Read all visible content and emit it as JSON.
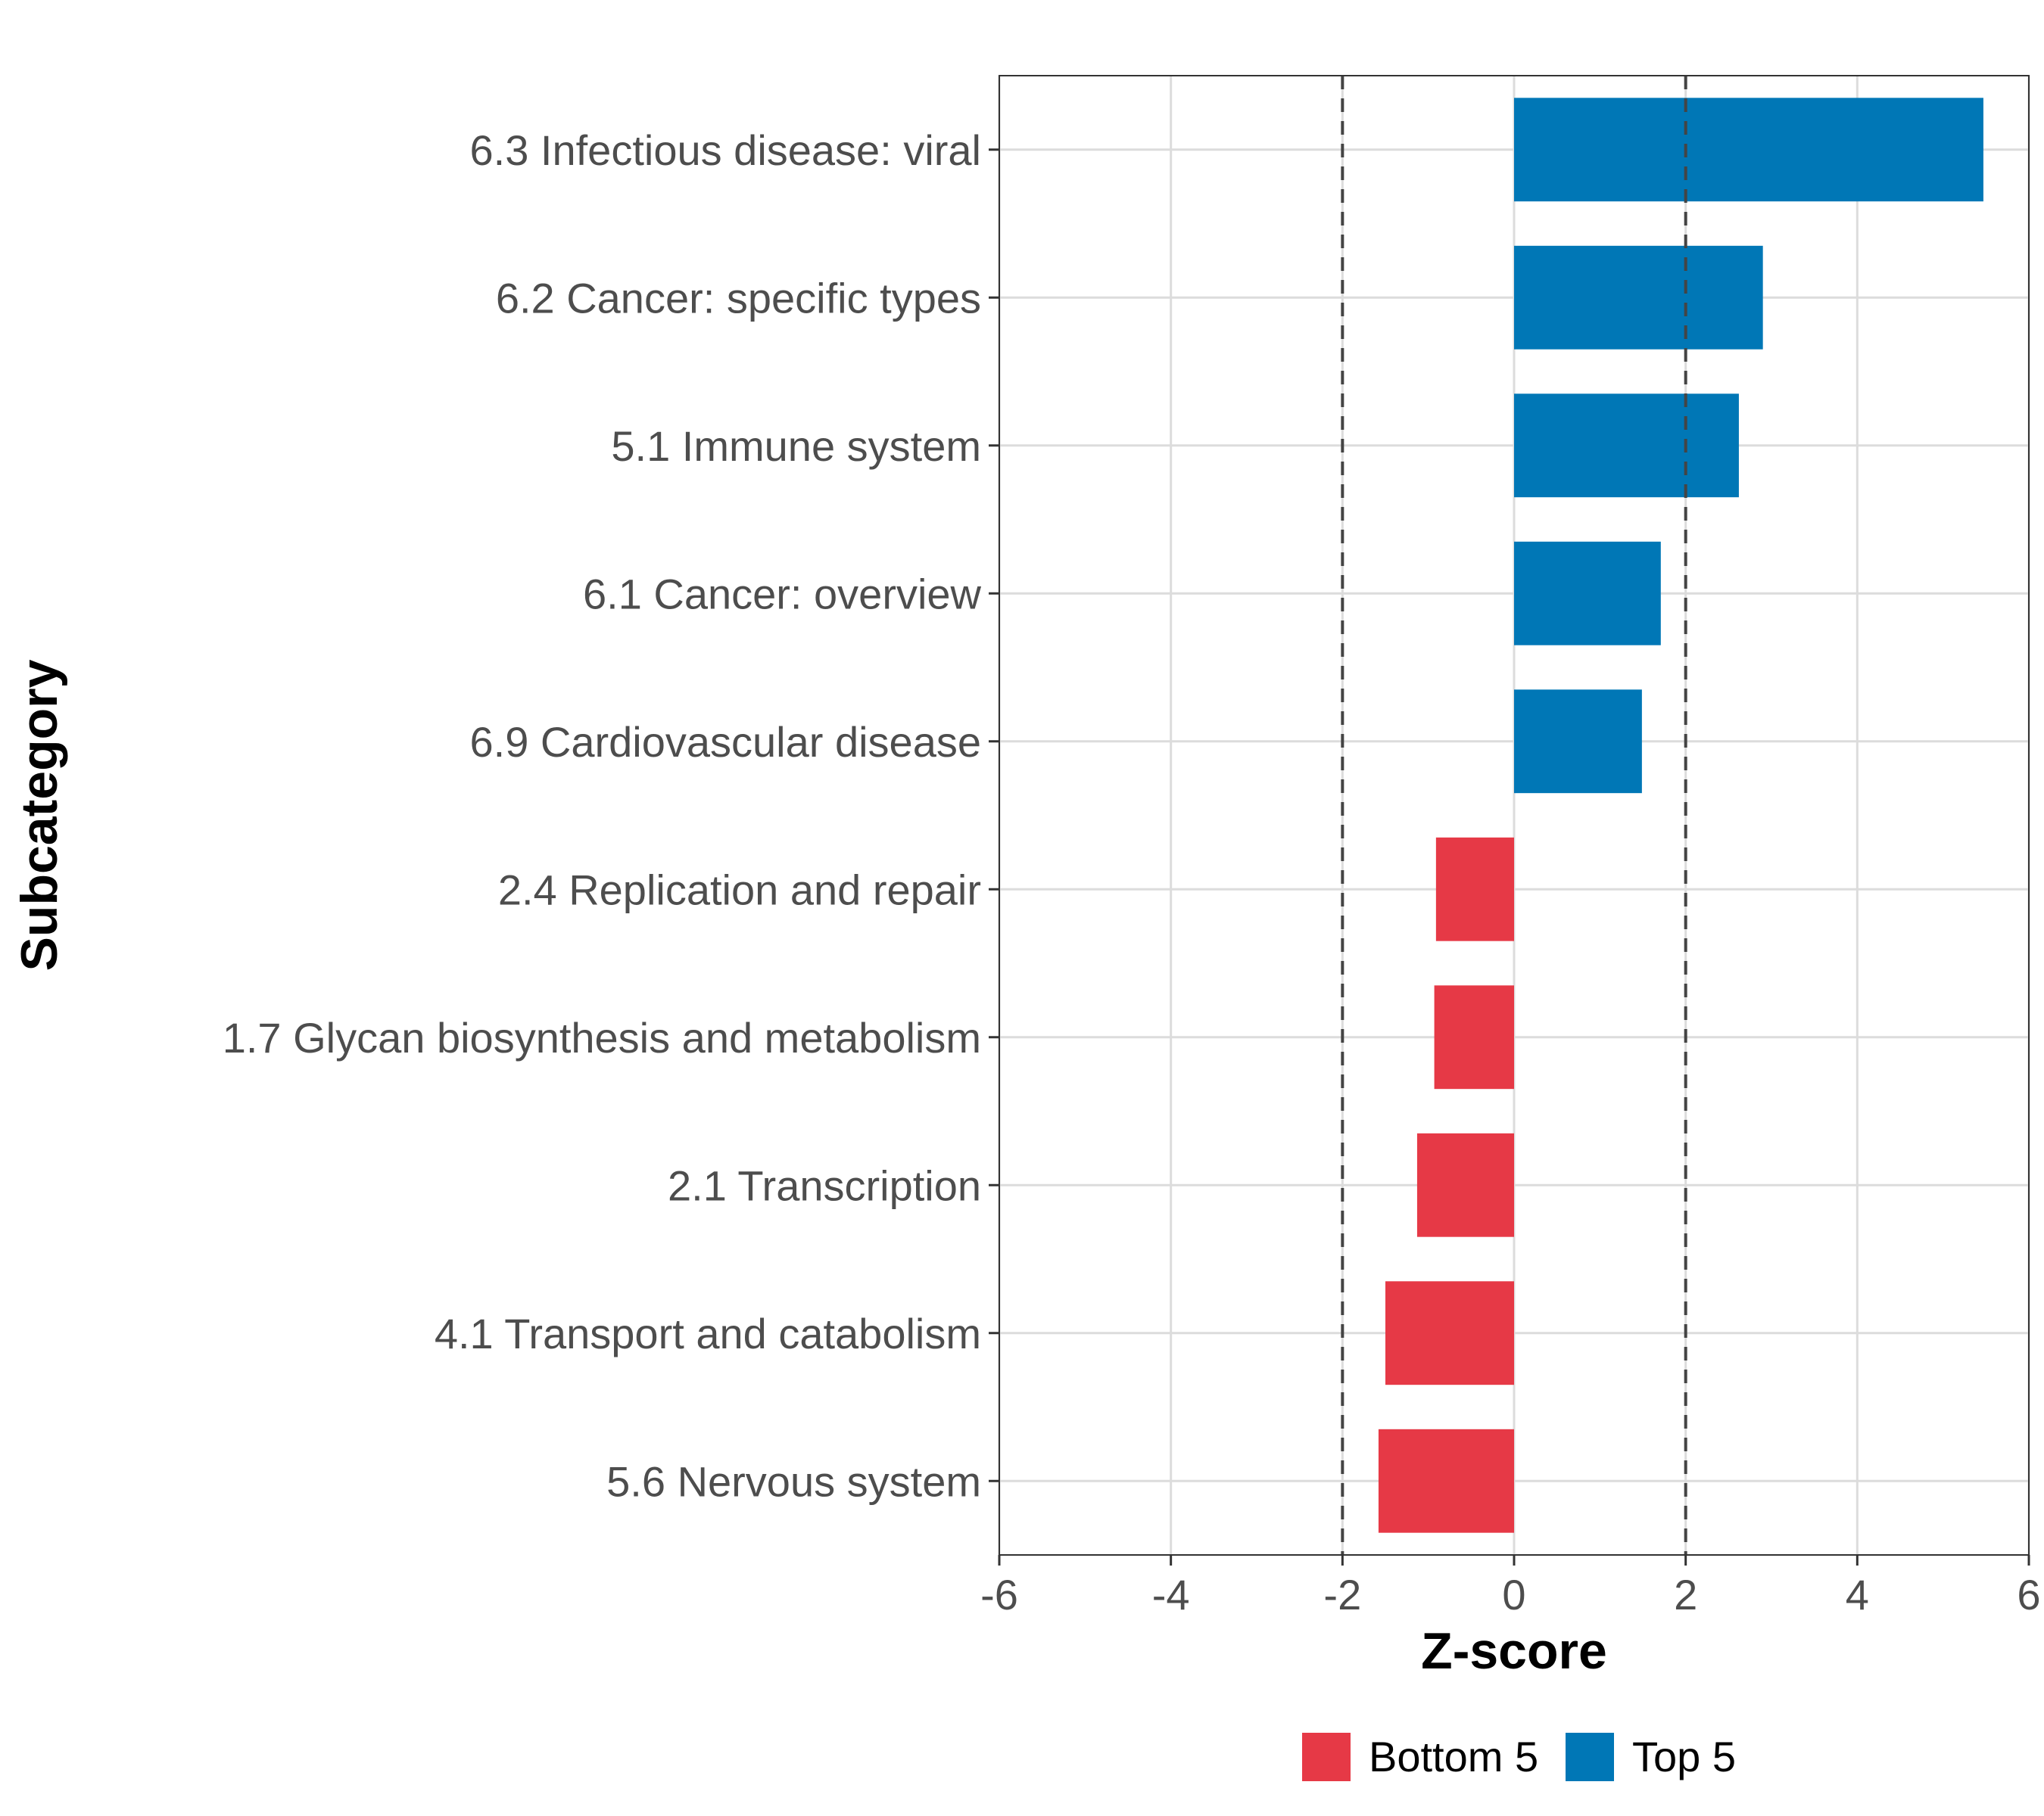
{
  "chart_data": {
    "type": "bar",
    "orientation": "horizontal",
    "categories": [
      "6.3 Infectious disease: viral",
      "6.2 Cancer: specific types",
      "5.1 Immune system",
      "6.1 Cancer: overview",
      "6.9 Cardiovascular disease",
      "2.4 Replication and repair",
      "1.7 Glycan biosynthesis and metabolism",
      "2.1 Transcription",
      "4.1 Transport and catabolism",
      "5.6 Nervous system"
    ],
    "values": [
      5.47,
      2.9,
      2.62,
      1.71,
      1.49,
      -0.91,
      -0.93,
      -1.13,
      -1.5,
      -1.58
    ],
    "groups": [
      "Top 5",
      "Top 5",
      "Top 5",
      "Top 5",
      "Top 5",
      "Bottom 5",
      "Bottom 5",
      "Bottom 5",
      "Bottom 5",
      "Bottom 5"
    ],
    "xlabel": "Z-score",
    "ylabel": "Subcategory",
    "xlim": [
      -6,
      6
    ],
    "xticks": [
      -6,
      -4,
      -2,
      0,
      2,
      4,
      6
    ],
    "xtick_labels": [
      "-6",
      "-4",
      "-2",
      "0",
      "2",
      "4",
      "6"
    ],
    "reference_lines": [
      -2,
      2
    ],
    "grid": true,
    "legend": {
      "position": "bottom",
      "entries": [
        {
          "label": "Bottom 5",
          "color": "#e63946"
        },
        {
          "label": "Top 5",
          "color": "#0077b6"
        }
      ]
    },
    "colors": {
      "Top 5": "#0077b6",
      "Bottom 5": "#e63946"
    }
  }
}
